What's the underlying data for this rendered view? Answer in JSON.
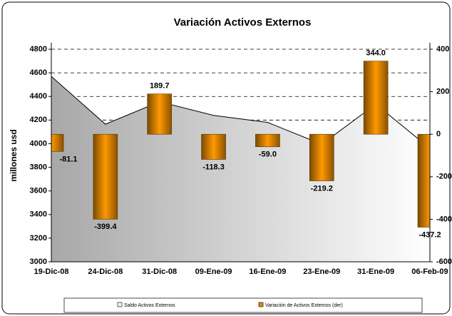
{
  "chart_data": {
    "type": "combo",
    "title": "Variación Activos Externos",
    "ylabel": "millones usd",
    "categories": [
      "19-Dic-08",
      "24-Dic-08",
      "31-Dic-08",
      "09-Ene-09",
      "16-Ene-09",
      "23-Ene-09",
      "31-Ene-09",
      "06-Feb-09"
    ],
    "series": [
      {
        "name": "Saldo Activos Externos",
        "type": "area",
        "color": "#b8b8b8",
        "values": [
          4570,
          4165,
          4355,
          4240,
          4180,
          3995,
          4335,
          3960
        ]
      },
      {
        "name": "Variación de Activos Externos (der)",
        "type": "bar",
        "axis": "y2",
        "color": "#e08a00",
        "values": [
          -81.1,
          -399.4,
          189.7,
          -118.3,
          -59.0,
          -219.2,
          344.0,
          -437.2
        ],
        "value_labels": [
          "-81.1",
          "-399.4",
          "189.7",
          "-118.3",
          "-59.0",
          "-219.2",
          "344.0",
          "-437.2"
        ]
      }
    ],
    "ylim": [
      3000,
      4800
    ],
    "yticks": [
      3000,
      3200,
      3400,
      3600,
      3800,
      4000,
      4200,
      4400,
      4600,
      4800
    ],
    "y2lim": [
      -600,
      400
    ],
    "y2ticks": [
      -600,
      -400,
      -200,
      0,
      200,
      400
    ],
    "grid": true,
    "legend": "bottom"
  }
}
